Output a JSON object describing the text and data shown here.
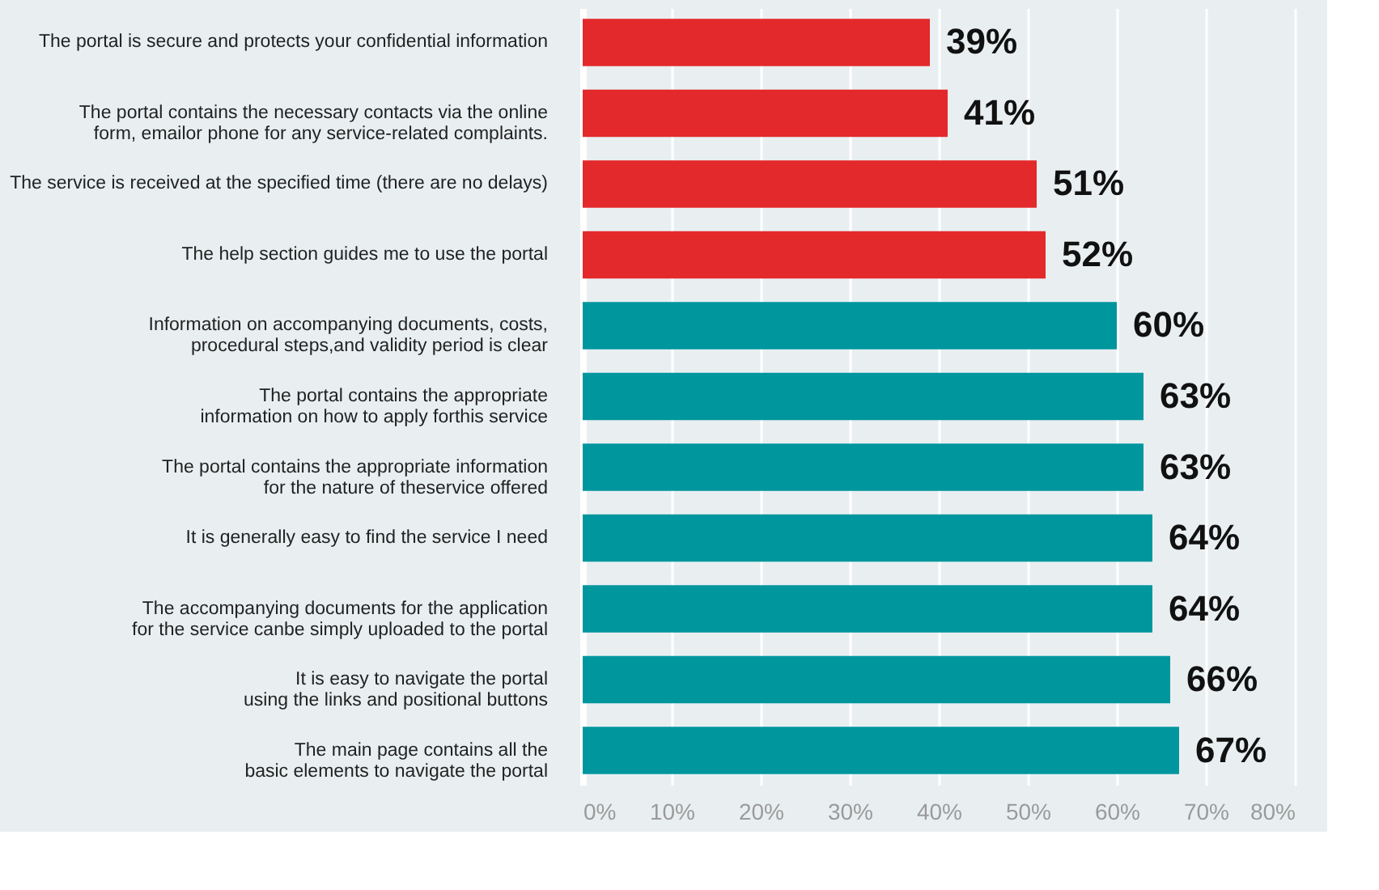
{
  "chart_data": {
    "type": "bar",
    "orientation": "horizontal",
    "categories": [
      "The portal is secure and protects your confidential information",
      "The portal contains the necessary contacts via the online\nform, emailor phone for any service-related complaints.",
      "The service is received at the specified time (there are no delays)",
      "The help section guides me to use the portal",
      "Information on accompanying documents, costs,\nprocedural steps,and validity period is clear",
      "The portal contains the appropriate\ninformation on how to apply forthis service",
      "The portal contains the appropriate information\nfor the nature of theservice offered",
      "It is generally easy to find the service I need",
      "The accompanying documents for the application\nfor the service canbe simply uploaded to the portal",
      "It is easy to navigate the portal\nusing the links and positional buttons",
      "The main page contains all the\nbasic elements to navigate the portal"
    ],
    "values": [
      39,
      41,
      51,
      52,
      60,
      63,
      63,
      64,
      64,
      66,
      67
    ],
    "value_labels": [
      "39%",
      "41%",
      "51%",
      "52%",
      "60%",
      "63%",
      "63%",
      "64%",
      "64%",
      "66%",
      "67%"
    ],
    "colors": [
      "#e3292b",
      "#e3292b",
      "#e3292b",
      "#e3292b",
      "#00969e",
      "#00969e",
      "#00969e",
      "#00969e",
      "#00969e",
      "#00969e",
      "#00969e"
    ],
    "xlim": [
      0,
      80
    ],
    "xticks": [
      {
        "value": 0,
        "label": "0%"
      },
      {
        "value": 10,
        "label": "10%"
      },
      {
        "value": 20,
        "label": "20%"
      },
      {
        "value": 30,
        "label": "30%"
      },
      {
        "value": 40,
        "label": "40%"
      },
      {
        "value": 50,
        "label": "50%"
      },
      {
        "value": 60,
        "label": "60%"
      },
      {
        "value": 70,
        "label": "70%"
      },
      {
        "value": 80,
        "label": "80%"
      }
    ],
    "grid": "x"
  }
}
